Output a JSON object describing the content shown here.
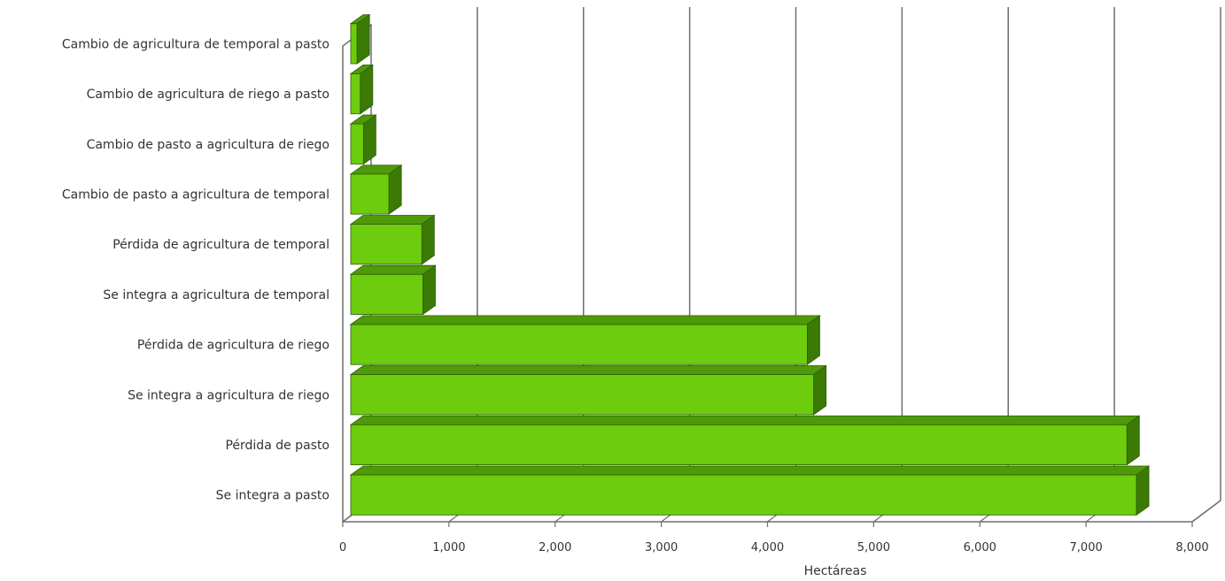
{
  "chart_data": {
    "type": "bar",
    "orientation": "horizontal",
    "style": "3d",
    "categories": [
      "Cambio de agricultura de temporal a pasto",
      "Cambio de agricultura de riego a pasto",
      "Cambio de pasto a agricultura de riego",
      "Cambio de pasto a agricultura de temporal",
      "Pérdida de agricultura de temporal",
      "Se integra a agricultura de temporal",
      "Pérdida de agricultura de riego",
      "Se integra a agricultura de riego",
      "Pérdida de pasto",
      "Se integra a pasto"
    ],
    "values": [
      60,
      90,
      120,
      360,
      670,
      680,
      4300,
      4360,
      7310,
      7400
    ],
    "xlabel": "Hectáreas",
    "xlim": [
      0,
      8000
    ],
    "xticks": [
      "0",
      "1,000",
      "2,000",
      "3,000",
      "4,000",
      "5,000",
      "6,000",
      "7,000",
      "8,000"
    ],
    "grid": true,
    "legend": "none",
    "colors": {
      "bar_front": "#6ccc0d",
      "bar_top": "#4e9a08",
      "bar_side": "#3a7a05",
      "gridline": "#6e6e6e"
    }
  }
}
